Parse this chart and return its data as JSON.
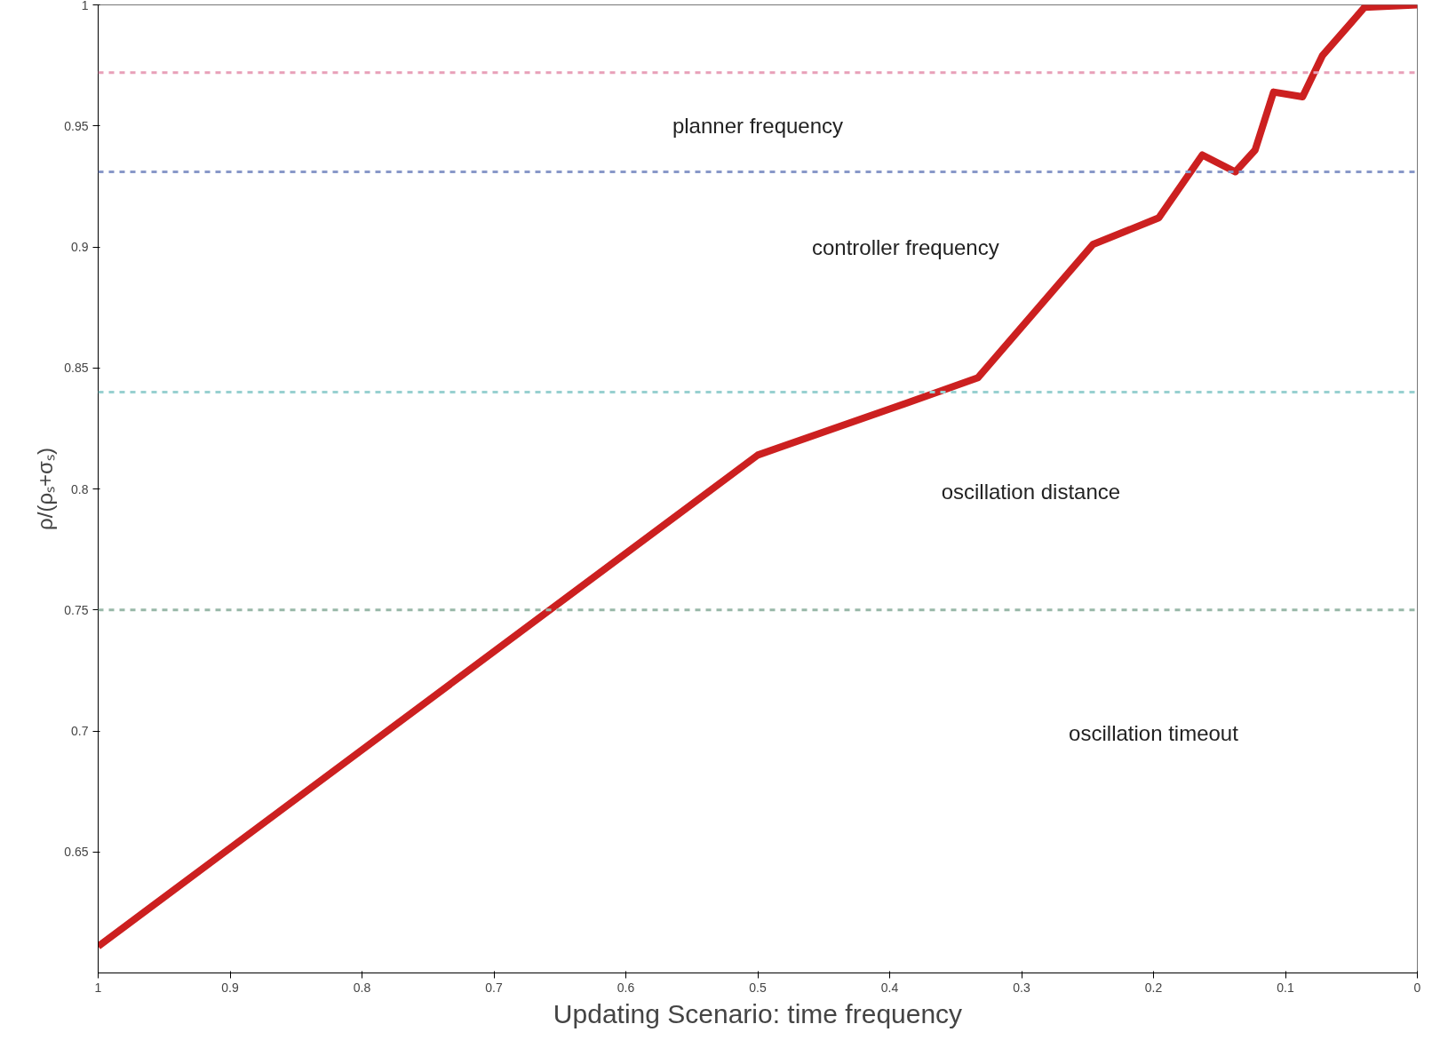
{
  "chart_data": {
    "type": "line",
    "xlabel": "Updating Scenario: time frequency",
    "ylabel": "ρ/(ρₛ+σₛ)",
    "x": [
      1,
      0.5,
      0.4,
      0.333,
      0.246,
      0.196,
      0.163,
      0.138,
      0.123,
      0.109,
      0.087,
      0.072,
      0.04,
      0
    ],
    "series": [
      {
        "color": "#cc2020",
        "values": [
          0.611,
          0.814,
          0.833,
          0.846,
          0.901,
          0.912,
          0.938,
          0.931,
          0.94,
          0.964,
          0.962,
          0.979,
          0.999,
          1
        ]
      }
    ],
    "xlim": [
      1,
      0
    ],
    "ylim": [
      0.6,
      1
    ],
    "xticks": [
      1,
      0.9,
      0.8,
      0.7,
      0.6,
      0.5,
      0.4,
      0.3,
      0.2,
      0.1,
      0
    ],
    "yticks": [
      0.65,
      0.7,
      0.75,
      0.8,
      0.85,
      0.9,
      0.95,
      1
    ],
    "ref_lines": [
      {
        "axis": "y",
        "value": 0.972,
        "color": "#e8a0b8",
        "line_style": "dashed"
      },
      {
        "axis": "y",
        "value": 0.931,
        "color": "#8898c8",
        "line_style": "dashed"
      },
      {
        "axis": "y",
        "value": 0.84,
        "color": "#98d0d0",
        "line_style": "dashed"
      },
      {
        "axis": "y",
        "value": 0.75,
        "color": "#98b8a8",
        "line_style": "dashed"
      }
    ],
    "annotations": [
      "planner frequency",
      "controller frequency",
      "oscillation distance",
      "oscillation timeout"
    ],
    "grid": false,
    "marker": "none",
    "line_style": "solid"
  }
}
